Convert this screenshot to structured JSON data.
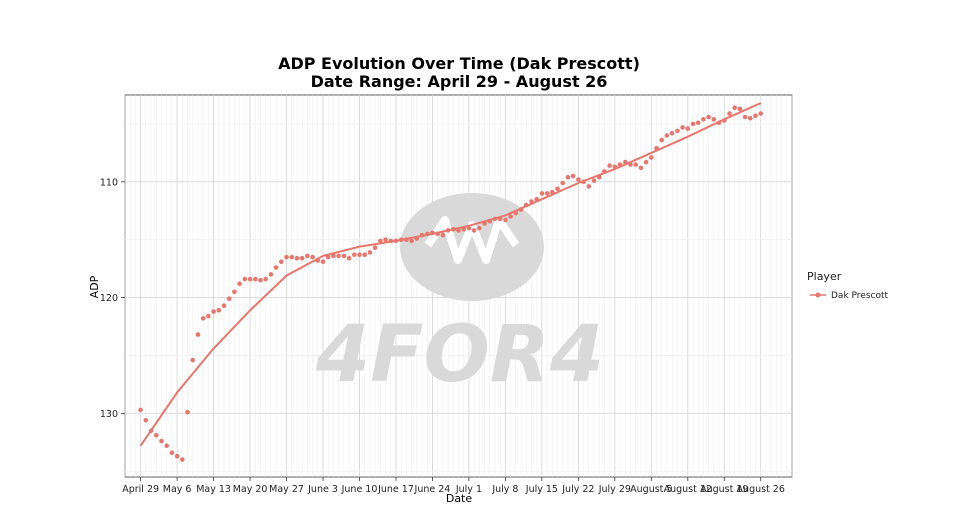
{
  "chart_data": {
    "type": "line",
    "title": "ADP Evolution Over Time (Dak Prescott)",
    "subtitle": "Date Range: April 29 - August 26",
    "xlabel": "Date",
    "ylabel": "ADP",
    "y_reversed": true,
    "ylim": [
      135.5,
      102.5
    ],
    "y_ticks": [
      110,
      120,
      130
    ],
    "x_tick_labels": [
      "April 29",
      "May 6",
      "May 13",
      "May 20",
      "May 27",
      "June 3",
      "June 10",
      "June 17",
      "June 24",
      "July 1",
      "July 8",
      "July 15",
      "July 22",
      "July 29",
      "August 5",
      "August 12",
      "August 19",
      "August 26"
    ],
    "x_ticks": [
      "2024-04-29",
      "2024-05-06",
      "2024-05-13",
      "2024-05-20",
      "2024-05-27",
      "2024-06-03",
      "2024-06-10",
      "2024-06-17",
      "2024-06-24",
      "2024-07-01",
      "2024-07-08",
      "2024-07-15",
      "2024-07-22",
      "2024-07-29",
      "2024-08-05",
      "2024-08-12",
      "2024-08-19",
      "2024-08-26"
    ],
    "xlim": [
      "2024-04-26",
      "2024-09-01"
    ],
    "grid": true,
    "legend": {
      "title": "Player",
      "placement": "right"
    },
    "watermark": "4FOR4",
    "series": [
      {
        "name": "Dak Prescott",
        "color": "#e8766d",
        "points": [
          {
            "x": "2024-04-29",
            "y": 129.7
          },
          {
            "x": "2024-04-30",
            "y": 130.6
          },
          {
            "x": "2024-05-01",
            "y": 131.5
          },
          {
            "x": "2024-05-02",
            "y": 131.9
          },
          {
            "x": "2024-05-03",
            "y": 132.4
          },
          {
            "x": "2024-05-04",
            "y": 132.8
          },
          {
            "x": "2024-05-05",
            "y": 133.4
          },
          {
            "x": "2024-05-06",
            "y": 133.7
          },
          {
            "x": "2024-05-07",
            "y": 134.0
          },
          {
            "x": "2024-05-08",
            "y": 129.9
          },
          {
            "x": "2024-05-09",
            "y": 125.4
          },
          {
            "x": "2024-05-10",
            "y": 123.2
          },
          {
            "x": "2024-05-11",
            "y": 121.8
          },
          {
            "x": "2024-05-12",
            "y": 121.6
          },
          {
            "x": "2024-05-13",
            "y": 121.2
          },
          {
            "x": "2024-05-14",
            "y": 121.1
          },
          {
            "x": "2024-05-15",
            "y": 120.7
          },
          {
            "x": "2024-05-16",
            "y": 120.1
          },
          {
            "x": "2024-05-17",
            "y": 119.5
          },
          {
            "x": "2024-05-18",
            "y": 118.8
          },
          {
            "x": "2024-05-19",
            "y": 118.4
          },
          {
            "x": "2024-05-20",
            "y": 118.4
          },
          {
            "x": "2024-05-21",
            "y": 118.4
          },
          {
            "x": "2024-05-22",
            "y": 118.5
          },
          {
            "x": "2024-05-23",
            "y": 118.4
          },
          {
            "x": "2024-05-24",
            "y": 118.0
          },
          {
            "x": "2024-05-25",
            "y": 117.4
          },
          {
            "x": "2024-05-26",
            "y": 116.9
          },
          {
            "x": "2024-05-27",
            "y": 116.5
          },
          {
            "x": "2024-05-28",
            "y": 116.5
          },
          {
            "x": "2024-05-29",
            "y": 116.6
          },
          {
            "x": "2024-05-30",
            "y": 116.6
          },
          {
            "x": "2024-05-31",
            "y": 116.4
          },
          {
            "x": "2024-06-01",
            "y": 116.5
          },
          {
            "x": "2024-06-02",
            "y": 116.8
          },
          {
            "x": "2024-06-03",
            "y": 116.9
          },
          {
            "x": "2024-06-04",
            "y": 116.5
          },
          {
            "x": "2024-06-05",
            "y": 116.4
          },
          {
            "x": "2024-06-06",
            "y": 116.4
          },
          {
            "x": "2024-06-07",
            "y": 116.4
          },
          {
            "x": "2024-06-08",
            "y": 116.6
          },
          {
            "x": "2024-06-09",
            "y": 116.3
          },
          {
            "x": "2024-06-10",
            "y": 116.3
          },
          {
            "x": "2024-06-11",
            "y": 116.3
          },
          {
            "x": "2024-06-12",
            "y": 116.1
          },
          {
            "x": "2024-06-13",
            "y": 115.7
          },
          {
            "x": "2024-06-14",
            "y": 115.1
          },
          {
            "x": "2024-06-15",
            "y": 115.0
          },
          {
            "x": "2024-06-16",
            "y": 115.1
          },
          {
            "x": "2024-06-17",
            "y": 115.1
          },
          {
            "x": "2024-06-18",
            "y": 115.0
          },
          {
            "x": "2024-06-19",
            "y": 115.0
          },
          {
            "x": "2024-06-20",
            "y": 115.1
          },
          {
            "x": "2024-06-21",
            "y": 114.9
          },
          {
            "x": "2024-06-22",
            "y": 114.6
          },
          {
            "x": "2024-06-23",
            "y": 114.5
          },
          {
            "x": "2024-06-24",
            "y": 114.4
          },
          {
            "x": "2024-06-25",
            "y": 114.5
          },
          {
            "x": "2024-06-26",
            "y": 114.6
          },
          {
            "x": "2024-06-27",
            "y": 114.2
          },
          {
            "x": "2024-06-28",
            "y": 114.1
          },
          {
            "x": "2024-06-29",
            "y": 114.2
          },
          {
            "x": "2024-06-30",
            "y": 114.1
          },
          {
            "x": "2024-07-01",
            "y": 114.0
          },
          {
            "x": "2024-07-02",
            "y": 114.2
          },
          {
            "x": "2024-07-03",
            "y": 114.0
          },
          {
            "x": "2024-07-04",
            "y": 113.6
          },
          {
            "x": "2024-07-05",
            "y": 113.4
          },
          {
            "x": "2024-07-06",
            "y": 113.2
          },
          {
            "x": "2024-07-07",
            "y": 113.2
          },
          {
            "x": "2024-07-08",
            "y": 113.3
          },
          {
            "x": "2024-07-09",
            "y": 113.0
          },
          {
            "x": "2024-07-10",
            "y": 112.7
          },
          {
            "x": "2024-07-11",
            "y": 112.4
          },
          {
            "x": "2024-07-12",
            "y": 112.0
          },
          {
            "x": "2024-07-13",
            "y": 111.7
          },
          {
            "x": "2024-07-14",
            "y": 111.5
          },
          {
            "x": "2024-07-15",
            "y": 111.0
          },
          {
            "x": "2024-07-16",
            "y": 111.0
          },
          {
            "x": "2024-07-17",
            "y": 110.9
          },
          {
            "x": "2024-07-18",
            "y": 110.6
          },
          {
            "x": "2024-07-19",
            "y": 110.1
          },
          {
            "x": "2024-07-20",
            "y": 109.6
          },
          {
            "x": "2024-07-21",
            "y": 109.5
          },
          {
            "x": "2024-07-22",
            "y": 109.8
          },
          {
            "x": "2024-07-23",
            "y": 110.0
          },
          {
            "x": "2024-07-24",
            "y": 110.4
          },
          {
            "x": "2024-07-25",
            "y": 109.9
          },
          {
            "x": "2024-07-26",
            "y": 109.6
          },
          {
            "x": "2024-07-27",
            "y": 109.1
          },
          {
            "x": "2024-07-28",
            "y": 108.6
          },
          {
            "x": "2024-07-29",
            "y": 108.7
          },
          {
            "x": "2024-07-30",
            "y": 108.5
          },
          {
            "x": "2024-07-31",
            "y": 108.3
          },
          {
            "x": "2024-08-01",
            "y": 108.5
          },
          {
            "x": "2024-08-02",
            "y": 108.5
          },
          {
            "x": "2024-08-03",
            "y": 108.8
          },
          {
            "x": "2024-08-04",
            "y": 108.3
          },
          {
            "x": "2024-08-05",
            "y": 107.9
          },
          {
            "x": "2024-08-06",
            "y": 107.1
          },
          {
            "x": "2024-08-07",
            "y": 106.4
          },
          {
            "x": "2024-08-08",
            "y": 106.0
          },
          {
            "x": "2024-08-09",
            "y": 105.8
          },
          {
            "x": "2024-08-10",
            "y": 105.6
          },
          {
            "x": "2024-08-11",
            "y": 105.3
          },
          {
            "x": "2024-08-12",
            "y": 105.4
          },
          {
            "x": "2024-08-13",
            "y": 105.0
          },
          {
            "x": "2024-08-14",
            "y": 104.9
          },
          {
            "x": "2024-08-15",
            "y": 104.6
          },
          {
            "x": "2024-08-16",
            "y": 104.4
          },
          {
            "x": "2024-08-17",
            "y": 104.6
          },
          {
            "x": "2024-08-18",
            "y": 104.9
          },
          {
            "x": "2024-08-19",
            "y": 104.7
          },
          {
            "x": "2024-08-20",
            "y": 104.1
          },
          {
            "x": "2024-08-21",
            "y": 103.6
          },
          {
            "x": "2024-08-22",
            "y": 103.7
          },
          {
            "x": "2024-08-23",
            "y": 104.4
          },
          {
            "x": "2024-08-24",
            "y": 104.5
          },
          {
            "x": "2024-08-25",
            "y": 104.3
          },
          {
            "x": "2024-08-26",
            "y": 104.1
          }
        ],
        "trend": [
          {
            "x": "2024-04-29",
            "y": 132.8
          },
          {
            "x": "2024-05-06",
            "y": 128.2
          },
          {
            "x": "2024-05-13",
            "y": 124.4
          },
          {
            "x": "2024-05-20",
            "y": 121.1
          },
          {
            "x": "2024-05-27",
            "y": 118.1
          },
          {
            "x": "2024-06-03",
            "y": 116.4
          },
          {
            "x": "2024-06-10",
            "y": 115.6
          },
          {
            "x": "2024-06-17",
            "y": 115.1
          },
          {
            "x": "2024-06-24",
            "y": 114.5
          },
          {
            "x": "2024-07-01",
            "y": 113.8
          },
          {
            "x": "2024-07-08",
            "y": 112.9
          },
          {
            "x": "2024-07-15",
            "y": 111.5
          },
          {
            "x": "2024-07-22",
            "y": 110.1
          },
          {
            "x": "2024-07-29",
            "y": 108.9
          },
          {
            "x": "2024-08-05",
            "y": 107.5
          },
          {
            "x": "2024-08-12",
            "y": 106.1
          },
          {
            "x": "2024-08-19",
            "y": 104.6
          },
          {
            "x": "2024-08-26",
            "y": 103.2
          }
        ]
      }
    ]
  }
}
